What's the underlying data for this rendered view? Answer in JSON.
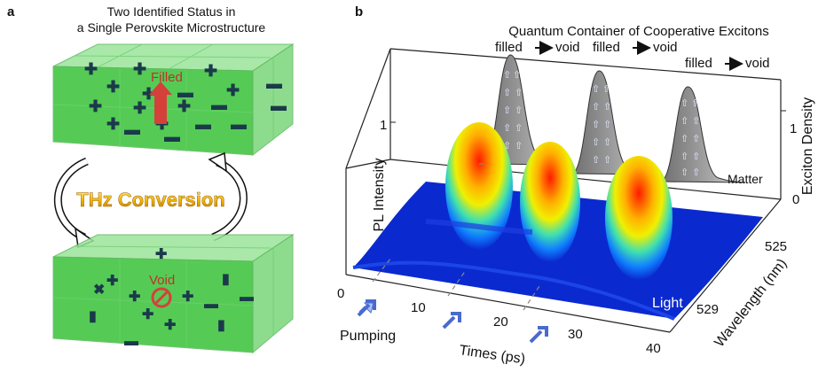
{
  "panel_a": {
    "label": "a",
    "title_line1": "Two Identified Status in",
    "title_line2": "a Single Perovskite Microstructure",
    "filled_label": "Filled",
    "void_label": "Void",
    "conversion_label": "THz Conversion"
  },
  "panel_b": {
    "label": "b",
    "title": "Quantum Container of Cooperative Excitons",
    "states": [
      "filled",
      "void",
      "filled",
      "void",
      "filled",
      "void"
    ],
    "pl_intensity_label": "PL Intensity",
    "pl_tick": "1",
    "exciton_density_label": "Exciton Density",
    "exciton_ticks": [
      "1",
      "0"
    ],
    "matter_label": "Matter",
    "light_label": "Light",
    "pumping_label": "Pumping",
    "x_axis_label": "Times (ps)",
    "x_ticks": [
      "0",
      "10",
      "20",
      "30",
      "40"
    ],
    "y_axis_label": "Wavelength (nm)",
    "y_ticks": [
      "525",
      "529"
    ],
    "colors": {
      "surface_low": "#0a2ad0",
      "surface_high": "#ff1a00",
      "matter_fill": "#8c8c8c",
      "cube_green": "#3fd43f"
    }
  }
}
